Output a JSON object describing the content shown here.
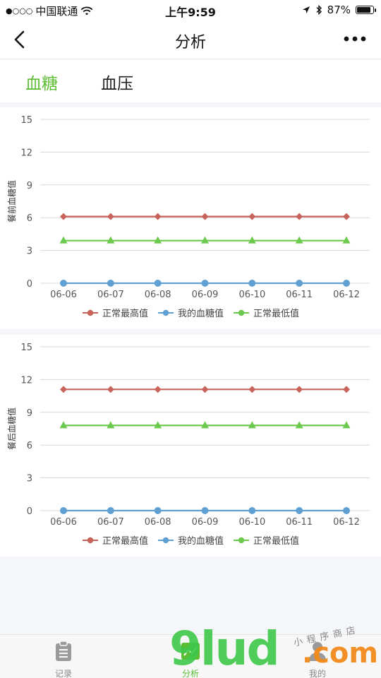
{
  "status_bar": {
    "signal": "●○○○",
    "carrier": "中国联通",
    "time": "上午9:59",
    "battery": "87%",
    "battery_level": 0.87
  },
  "nav": {
    "title": "分析"
  },
  "tabs": [
    {
      "label": "血糖",
      "active": true
    },
    {
      "label": "血压",
      "active": false
    }
  ],
  "charts": [
    {
      "ylabel": "餐前血糖值",
      "legend": [
        "正常最高值",
        "我的血糖值",
        "正常最低值"
      ],
      "chart_data": {
        "type": "line",
        "categories": [
          "06-06",
          "06-07",
          "06-08",
          "06-09",
          "06-10",
          "06-11",
          "06-12"
        ],
        "ylim": [
          0,
          15
        ],
        "yticks": [
          0,
          3,
          6,
          9,
          12,
          15
        ],
        "ylabel": "餐前血糖值",
        "series": [
          {
            "name": "正常最高值",
            "color": "#c8635b",
            "marker": "diamond",
            "values": [
              6.1,
              6.1,
              6.1,
              6.1,
              6.1,
              6.1,
              6.1
            ]
          },
          {
            "name": "我的血糖值",
            "color": "#5f9fd1",
            "marker": "circle",
            "values": [
              0,
              0,
              0,
              0,
              0,
              0,
              0
            ]
          },
          {
            "name": "正常最低值",
            "color": "#6bc94d",
            "marker": "triangle",
            "values": [
              3.9,
              3.9,
              3.9,
              3.9,
              3.9,
              3.9,
              3.9
            ]
          }
        ]
      }
    },
    {
      "ylabel": "餐后血糖值",
      "legend": [
        "正常最高值",
        "我的血糖值",
        "正常最低值"
      ],
      "chart_data": {
        "type": "line",
        "categories": [
          "06-06",
          "06-07",
          "06-08",
          "06-09",
          "06-10",
          "06-11",
          "06-12"
        ],
        "ylim": [
          0,
          15
        ],
        "yticks": [
          0,
          3,
          6,
          9,
          12,
          15
        ],
        "ylabel": "餐后血糖值",
        "series": [
          {
            "name": "正常最高值",
            "color": "#c8635b",
            "marker": "diamond",
            "values": [
              11.1,
              11.1,
              11.1,
              11.1,
              11.1,
              11.1,
              11.1
            ]
          },
          {
            "name": "我的血糖值",
            "color": "#5f9fd1",
            "marker": "circle",
            "values": [
              0,
              0,
              0,
              0,
              0,
              0,
              0
            ]
          },
          {
            "name": "正常最低值",
            "color": "#6bc94d",
            "marker": "triangle",
            "values": [
              7.8,
              7.8,
              7.8,
              7.8,
              7.8,
              7.8,
              7.8
            ]
          }
        ]
      }
    }
  ],
  "tabbar": [
    {
      "label": "记录",
      "icon": "clipboard-icon",
      "active": false
    },
    {
      "label": "分析",
      "icon": "chart-icon",
      "active": true
    },
    {
      "label": "我的",
      "icon": "user-icon",
      "active": false
    }
  ],
  "watermark": {
    "text": "9lud",
    "suffix": ".com",
    "small": "小程序商店"
  }
}
